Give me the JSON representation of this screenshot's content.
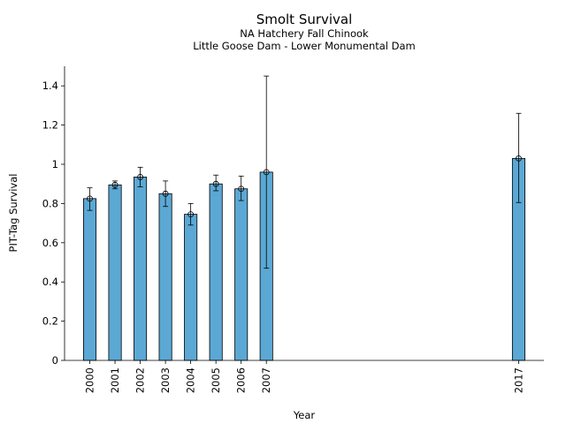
{
  "chart_data": {
    "type": "bar",
    "title": "Smolt Survival",
    "subtitle": [
      "NA Hatchery Fall Chinook",
      "Little Goose Dam - Lower Monumental Dam"
    ],
    "xlabel": "Year",
    "ylabel": "PIT-Tag Survival",
    "ylim": [
      0,
      1.5
    ],
    "xlim": [
      1999,
      2018
    ],
    "yticks": [
      0,
      0.2,
      0.4,
      0.6,
      0.8,
      1,
      1.2,
      1.4
    ],
    "ytick_labels": [
      "0",
      "0.2",
      "0.4",
      "0.6",
      "0.8",
      "1",
      "1.2",
      "1.4"
    ],
    "categories": [
      "2000",
      "2001",
      "2002",
      "2003",
      "2004",
      "2005",
      "2006",
      "2007",
      "2017"
    ],
    "x": [
      2000,
      2001,
      2002,
      2003,
      2004,
      2005,
      2006,
      2007,
      2017
    ],
    "values": [
      0.825,
      0.895,
      0.935,
      0.85,
      0.745,
      0.9,
      0.875,
      0.96,
      1.03
    ],
    "error_lower": [
      0.765,
      0.875,
      0.885,
      0.785,
      0.69,
      0.865,
      0.815,
      0.47,
      0.805
    ],
    "error_upper": [
      0.88,
      0.915,
      0.985,
      0.915,
      0.8,
      0.945,
      0.94,
      1.45,
      1.26
    ],
    "bar_color": "#5ba8d4",
    "edge_color": "#000000",
    "grid": false,
    "legend": "none"
  }
}
